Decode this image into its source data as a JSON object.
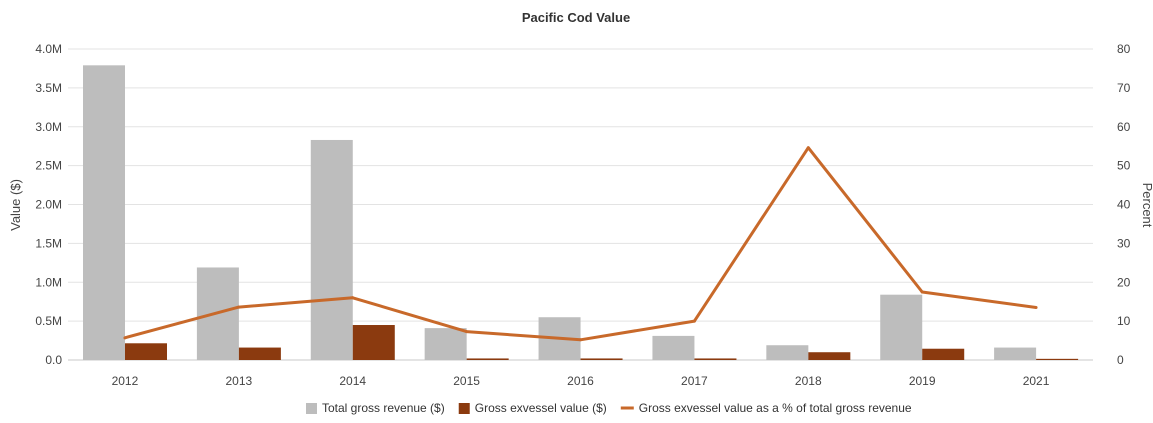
{
  "chart_data": {
    "type": "bar",
    "title": "Pacific Cod Value",
    "categories": [
      "2012",
      "2013",
      "2014",
      "2015",
      "2016",
      "2017",
      "2018",
      "2019",
      "2021"
    ],
    "ylabel": "Value ($)",
    "y2label": "Percent",
    "ylim": [
      0,
      4000000
    ],
    "y2lim": [
      0,
      80
    ],
    "yticks": [
      "0.0",
      "0.5M",
      "1.0M",
      "1.5M",
      "2.0M",
      "2.5M",
      "3.0M",
      "3.5M",
      "4.0M"
    ],
    "y2ticks": [
      "0",
      "10",
      "20",
      "30",
      "40",
      "50",
      "60",
      "70",
      "80"
    ],
    "grid": true,
    "legend_position": "bottom",
    "series": [
      {
        "name": "Total gross revenue ($)",
        "type": "bar",
        "axis": "left",
        "color": "#bdbdbd",
        "values": [
          3790000,
          1190000,
          2830000,
          410000,
          550000,
          310000,
          190000,
          840000,
          160000
        ]
      },
      {
        "name": "Gross exvessel value ($)",
        "type": "bar",
        "axis": "left",
        "color": "#8b3a0f",
        "values": [
          215000,
          160000,
          450000,
          20000,
          20000,
          20000,
          100000,
          145000,
          15000
        ]
      },
      {
        "name": "Gross exvessel value as a % of total gross revenue",
        "type": "line",
        "axis": "right",
        "color": "#c8692a",
        "values": [
          5.7,
          13.6,
          16.0,
          7.3,
          5.2,
          10.0,
          54.6,
          17.5,
          13.5
        ]
      }
    ]
  }
}
